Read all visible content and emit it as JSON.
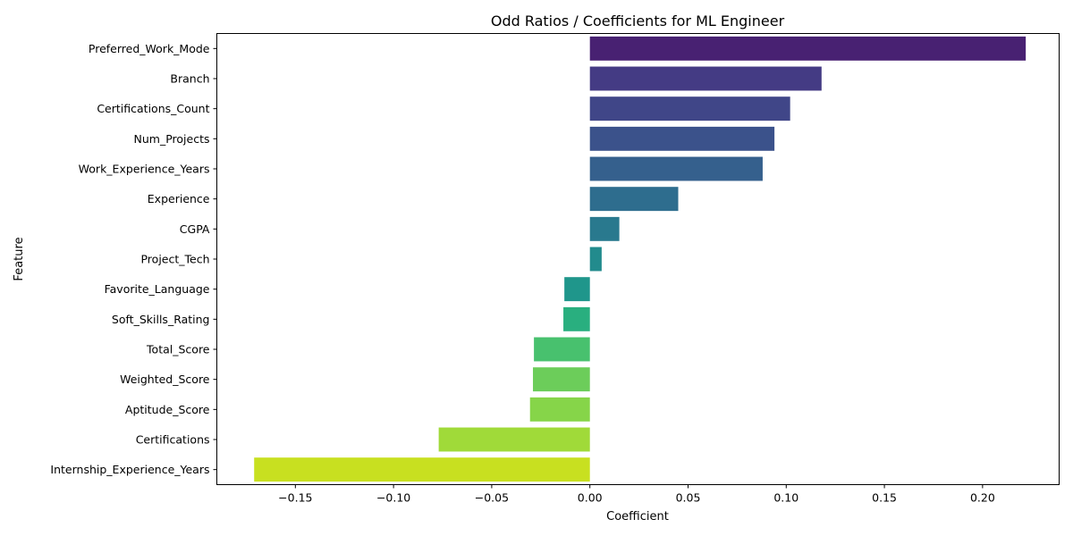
{
  "chart_data": {
    "type": "bar",
    "orientation": "horizontal",
    "title": "Odd Ratios / Coefficients for ML Engineer",
    "xlabel": "Coefficient",
    "ylabel": "Feature",
    "xlim": [
      -0.19,
      0.239
    ],
    "xticks": [
      -0.15,
      -0.1,
      -0.05,
      0.0,
      0.05,
      0.1,
      0.15,
      0.2
    ],
    "xtick_labels": [
      "−0.15",
      "−0.10",
      "−0.05",
      "0.00",
      "0.05",
      "0.10",
      "0.15",
      "0.20"
    ],
    "grid": false,
    "categories": [
      "Preferred_Work_Mode",
      "Branch",
      "Certifications_Count",
      "Num_Projects",
      "Work_Experience_Years",
      "Experience",
      "CGPA",
      "Project_Tech",
      "Favorite_Language",
      "Soft_Skills_Rating",
      "Total_Score",
      "Weighted_Score",
      "Aptitude_Score",
      "Certifications",
      "Internship_Experience_Years"
    ],
    "values": [
      0.222,
      0.118,
      0.102,
      0.094,
      0.088,
      0.045,
      0.015,
      0.006,
      -0.013,
      -0.0135,
      -0.0285,
      -0.029,
      -0.0305,
      -0.077,
      -0.171
    ],
    "colors": [
      "#482172",
      "#443b84",
      "#404688",
      "#3b528b",
      "#35608d",
      "#2e6d8e",
      "#29798e",
      "#228b8d",
      "#1f968b",
      "#29af7f",
      "#48c16e",
      "#6ccd5a",
      "#86d549",
      "#a0da39",
      "#c8e020"
    ]
  }
}
